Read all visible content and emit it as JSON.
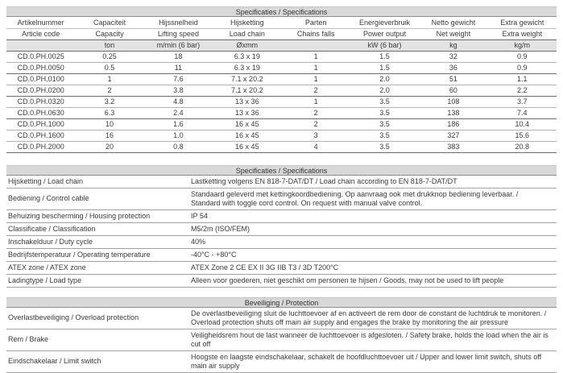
{
  "colors": {
    "band_bg": "#d8d8d8",
    "unit_row_bg": "#e3e3e3",
    "text": "#3a3a3a",
    "line_light": "#b3b3b3",
    "line_dark": "#6d6d6d"
  },
  "spec_table": {
    "title": "Specificaties / Specifications",
    "columns": [
      {
        "nl": "Artikelnummer",
        "en": "Article code",
        "unit": ""
      },
      {
        "nl": "Capaciteit",
        "en": "Capacity",
        "unit": "ton"
      },
      {
        "nl": "Hijssnelheid",
        "en": "Lifting speed",
        "unit": "m/min (6 bar)"
      },
      {
        "nl": "Hijsketting",
        "en": "Load chain",
        "unit": "Øxmm"
      },
      {
        "nl": "Parten",
        "en": "Chains falls",
        "unit": ""
      },
      {
        "nl": "Energieverbruik",
        "en": "Power output",
        "unit": "kW (6 bar)"
      },
      {
        "nl": "Netto gewicht",
        "en": "Net weight",
        "unit": "kg"
      },
      {
        "nl": "Extra gewicht",
        "en": "Extra weight",
        "unit": "kg/m"
      }
    ],
    "rows": [
      [
        "CD.0.PH.0025",
        "0.25",
        "18",
        "6.3 x 19",
        "1",
        "1.5",
        "32",
        "0.9"
      ],
      [
        "CD.0.PH.0050",
        "0.5",
        "11",
        "6.3 x 19",
        "1",
        "1.5",
        "36",
        "0.9"
      ],
      [
        "CD.0.PH.0100",
        "1",
        "7.6",
        "7.1 x 20.2",
        "1",
        "2.0",
        "51",
        "1.1"
      ],
      [
        "CD.0.PH.0200",
        "2",
        "3.8",
        "7.1 x 20.2",
        "2",
        "2.0",
        "60",
        "2.2"
      ],
      [
        "CD.0.PH.0320",
        "3.2",
        "4.8",
        "13 x 36",
        "1",
        "3.5",
        "108",
        "3.7"
      ],
      [
        "CD.0.PH.0630",
        "6.3",
        "2.4",
        "13 x 36",
        "2",
        "3.5",
        "138",
        "7.4"
      ],
      [
        "CD.0.PH.1000",
        "10",
        "1.6",
        "16 x 45",
        "2",
        "3.5",
        "186",
        "10.4"
      ],
      [
        "CD.0.PH.1600",
        "16",
        "1.0",
        "16 x 45",
        "3",
        "3.5",
        "327",
        "15.6"
      ],
      [
        "CD.0.PH.2000",
        "20",
        "0.8",
        "16 x 45",
        "4",
        "3.5",
        "383",
        "20.8"
      ]
    ]
  },
  "detail_table": {
    "title": "Specificaties / Specifications",
    "rows": [
      {
        "label": "Hijsketting / Load chain",
        "value": "Lastketting volgens EN 818-7-DAT/DT / Load chain according to EN 818-7-DAT/DT"
      },
      {
        "label": "Bediening / Control cable",
        "value": "Standaard geleverd met kettingkoordbediening. Op aanvraag ook met drukknop bediening leverbaar. /\nStandard with toggle cord control. On request with manual valve control."
      },
      {
        "label": "Behuizing bescherming / Housing protection",
        "value": "IP 54"
      },
      {
        "label": "Classificatie / Classification",
        "value": "M5/2m (ISO/FEM)"
      },
      {
        "label": "Inschakelduur / Duty cycle",
        "value": "40%"
      },
      {
        "label": "Bedrijfstemperatuur / Operating temperature",
        "value": "-40°C  -  +80°C"
      },
      {
        "label": "ATEX zone / ATEX zone",
        "value": "ATEX Zone 2 CE EX II 3G IIB T3 / 3D T200°C"
      },
      {
        "label": "Ladingtype / Load type",
        "value": "Alleen voor goederen, niet geschikt om personen te hijsen / Goods, may not be used to lift people"
      }
    ]
  },
  "protection_table": {
    "title": "Beveiliging / Protection",
    "rows": [
      {
        "label": "Overlastbeveiliging / Overload protection",
        "value": "De overlastbeveiliging sluit de luchttoevoer af en activeert de rem door de constant de luchtdruk te monitoren. /\nOverload protection shuts off main air supply and engages the brake by monitoring the air pressure"
      },
      {
        "label": "Rem / Brake",
        "value": "Veiligheidsrem hout de last wanneer de luchttoevoer is afgesloten. / Safety brake, holds the load when the air is cut off"
      },
      {
        "label": "Eindschakelaar / Limit switch",
        "value": "Hoogste en laagste eindschakelaar, schakelt de hoofdluchttoevoer uit / Upper and lower limit switch, shuts off main air supply"
      }
    ]
  }
}
